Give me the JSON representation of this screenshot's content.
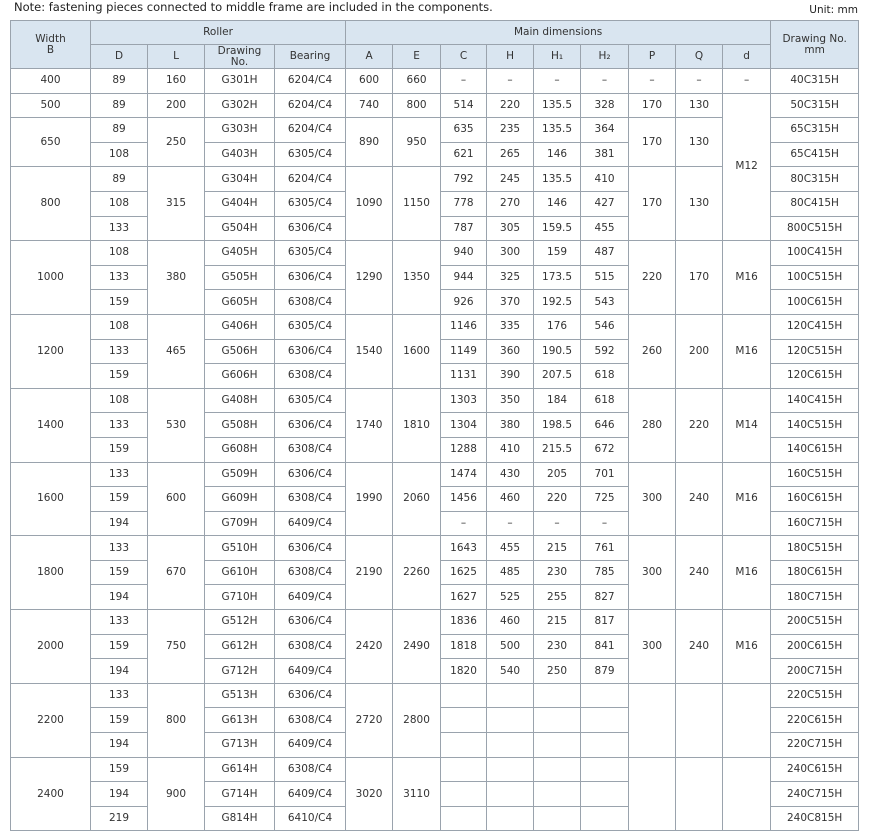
{
  "note": "Note: fastening pieces connected to middle frame are included in the components.",
  "unit": "Unit: mm",
  "header": {
    "width_b": "Width\nB",
    "roller": "Roller",
    "main_dimensions": "Main dimensions",
    "drawing_no_mm": "Drawing No.\nmm",
    "D": "D",
    "L": "L",
    "drawing_no": "Drawing\nNo.",
    "bearing": "Bearing",
    "A": "A",
    "E": "E",
    "C": "C",
    "H": "H",
    "H1": "H₁",
    "H2": "H₂",
    "P": "P",
    "Q": "Q",
    "d": "d"
  },
  "sections": [
    {
      "d": "–",
      "groups": [
        {
          "width": 400,
          "L": 160,
          "A": 600,
          "E": 660,
          "P": "–",
          "Q": "–",
          "rows": [
            {
              "D": 89,
              "drawing_no": "G301H",
              "bearing": "6204/C4",
              "C": "–",
              "H": "–",
              "H1": "–",
              "H2": "–",
              "drawing_no_mm": "40C315H"
            }
          ]
        }
      ]
    },
    {
      "d": "M12",
      "groups": [
        {
          "width": 500,
          "L": 200,
          "A": 740,
          "E": 800,
          "P": 170,
          "Q": 130,
          "rows": [
            {
              "D": 89,
              "drawing_no": "G302H",
              "bearing": "6204/C4",
              "C": 514,
              "H": 220,
              "H1": 135.5,
              "H2": 328,
              "drawing_no_mm": "50C315H"
            }
          ]
        },
        {
          "width": 650,
          "L": 250,
          "A": 890,
          "E": 950,
          "P": 170,
          "Q": 130,
          "rows": [
            {
              "D": 89,
              "drawing_no": "G303H",
              "bearing": "6204/C4",
              "C": 635,
              "H": 235,
              "H1": 135.5,
              "H2": 364,
              "drawing_no_mm": "65C315H"
            },
            {
              "D": 108,
              "drawing_no": "G403H",
              "bearing": "6305/C4",
              "C": 621,
              "H": 265,
              "H1": 146,
              "H2": 381,
              "drawing_no_mm": "65C415H"
            }
          ]
        },
        {
          "width": 800,
          "L": 315,
          "A": 1090,
          "E": 1150,
          "P": 170,
          "Q": 130,
          "rows": [
            {
              "D": 89,
              "drawing_no": "G304H",
              "bearing": "6204/C4",
              "C": 792,
              "H": 245,
              "H1": 135.5,
              "H2": 410,
              "drawing_no_mm": "80C315H"
            },
            {
              "D": 108,
              "drawing_no": "G404H",
              "bearing": "6305/C4",
              "C": 778,
              "H": 270,
              "H1": 146,
              "H2": 427,
              "drawing_no_mm": "80C415H"
            },
            {
              "D": 133,
              "drawing_no": "G504H",
              "bearing": "6306/C4",
              "C": 787,
              "H": 305,
              "H1": 159.5,
              "H2": 455,
              "drawing_no_mm": "800C515H"
            }
          ]
        }
      ]
    },
    {
      "d": "M16",
      "groups": [
        {
          "width": 1000,
          "L": 380,
          "A": 1290,
          "E": 1350,
          "P": 220,
          "Q": 170,
          "rows": [
            {
              "D": 108,
              "drawing_no": "G405H",
              "bearing": "6305/C4",
              "C": 940,
              "H": 300,
              "H1": 159,
              "H2": 487,
              "drawing_no_mm": "100C415H"
            },
            {
              "D": 133,
              "drawing_no": "G505H",
              "bearing": "6306/C4",
              "C": 944,
              "H": 325,
              "H1": 173.5,
              "H2": 515,
              "drawing_no_mm": "100C515H"
            },
            {
              "D": 159,
              "drawing_no": "G605H",
              "bearing": "6308/C4",
              "C": 926,
              "H": 370,
              "H1": 192.5,
              "H2": 543,
              "drawing_no_mm": "100C615H"
            }
          ]
        }
      ]
    },
    {
      "d": "M16",
      "groups": [
        {
          "width": 1200,
          "L": 465,
          "A": 1540,
          "E": 1600,
          "P": 260,
          "Q": 200,
          "rows": [
            {
              "D": 108,
              "drawing_no": "G406H",
              "bearing": "6305/C4",
              "C": 1146,
              "H": 335,
              "H1": 176,
              "H2": 546,
              "drawing_no_mm": "120C415H"
            },
            {
              "D": 133,
              "drawing_no": "G506H",
              "bearing": "6306/C4",
              "C": 1149,
              "H": 360,
              "H1": 190.5,
              "H2": 592,
              "drawing_no_mm": "120C515H"
            },
            {
              "D": 159,
              "drawing_no": "G606H",
              "bearing": "6308/C4",
              "C": 1131,
              "H": 390,
              "H1": 207.5,
              "H2": 618,
              "drawing_no_mm": "120C615H"
            }
          ]
        }
      ]
    },
    {
      "d": "M14",
      "groups": [
        {
          "width": 1400,
          "L": 530,
          "A": 1740,
          "E": 1810,
          "P": 280,
          "Q": 220,
          "rows": [
            {
              "D": 108,
              "drawing_no": "G408H",
              "bearing": "6305/C4",
              "C": 1303,
              "H": 350,
              "H1": 184,
              "H2": 618,
              "drawing_no_mm": "140C415H"
            },
            {
              "D": 133,
              "drawing_no": "G508H",
              "bearing": "6306/C4",
              "C": 1304,
              "H": 380,
              "H1": 198.5,
              "H2": 646,
              "drawing_no_mm": "140C515H"
            },
            {
              "D": 159,
              "drawing_no": "G608H",
              "bearing": "6308/C4",
              "C": 1288,
              "H": 410,
              "H1": 215.5,
              "H2": 672,
              "drawing_no_mm": "140C615H"
            }
          ]
        }
      ]
    },
    {
      "d": "M16",
      "groups": [
        {
          "width": 1600,
          "L": 600,
          "A": 1990,
          "E": 2060,
          "P": 300,
          "Q": 240,
          "rows": [
            {
              "D": 133,
              "drawing_no": "G509H",
              "bearing": "6306/C4",
              "C": 1474,
              "H": 430,
              "H1": 205,
              "H2": 701,
              "drawing_no_mm": "160C515H"
            },
            {
              "D": 159,
              "drawing_no": "G609H",
              "bearing": "6308/C4",
              "C": 1456,
              "H": 460,
              "H1": 220,
              "H2": 725,
              "drawing_no_mm": "160C615H"
            },
            {
              "D": 194,
              "drawing_no": "G709H",
              "bearing": "6409/C4",
              "C": "–",
              "H": "–",
              "H1": "–",
              "H2": "–",
              "drawing_no_mm": "160C715H"
            }
          ]
        }
      ]
    },
    {
      "d": "M16",
      "groups": [
        {
          "width": 1800,
          "L": 670,
          "A": 2190,
          "E": 2260,
          "P": 300,
          "Q": 240,
          "rows": [
            {
              "D": 133,
              "drawing_no": "G510H",
              "bearing": "6306/C4",
              "C": 1643,
              "H": 455,
              "H1": 215,
              "H2": 761,
              "drawing_no_mm": "180C515H"
            },
            {
              "D": 159,
              "drawing_no": "G610H",
              "bearing": "6308/C4",
              "C": 1625,
              "H": 485,
              "H1": 230,
              "H2": 785,
              "drawing_no_mm": "180C615H"
            },
            {
              "D": 194,
              "drawing_no": "G710H",
              "bearing": "6409/C4",
              "C": 1627,
              "H": 525,
              "H1": 255,
              "H2": 827,
              "drawing_no_mm": "180C715H"
            }
          ]
        }
      ]
    },
    {
      "d": "M16",
      "groups": [
        {
          "width": 2000,
          "L": 750,
          "A": 2420,
          "E": 2490,
          "P": 300,
          "Q": 240,
          "rows": [
            {
              "D": 133,
              "drawing_no": "G512H",
              "bearing": "6306/C4",
              "C": 1836,
              "H": 460,
              "H1": 215,
              "H2": 817,
              "drawing_no_mm": "200C515H"
            },
            {
              "D": 159,
              "drawing_no": "G612H",
              "bearing": "6308/C4",
              "C": 1818,
              "H": 500,
              "H1": 230,
              "H2": 841,
              "drawing_no_mm": "200C615H"
            },
            {
              "D": 194,
              "drawing_no": "G712H",
              "bearing": "6409/C4",
              "C": 1820,
              "H": 540,
              "H1": 250,
              "H2": 879,
              "drawing_no_mm": "200C715H"
            }
          ]
        }
      ]
    },
    {
      "groups": [
        {
          "width": 2200,
          "L": 800,
          "A": 2720,
          "E": 2800,
          "rows": [
            {
              "D": 133,
              "drawing_no": "G513H",
              "bearing": "6306/C4",
              "drawing_no_mm": "220C515H"
            },
            {
              "D": 159,
              "drawing_no": "G613H",
              "bearing": "6308/C4",
              "drawing_no_mm": "220C615H"
            },
            {
              "D": 194,
              "drawing_no": "G713H",
              "bearing": "6409/C4",
              "drawing_no_mm": "220C715H"
            }
          ]
        }
      ]
    },
    {
      "groups": [
        {
          "width": 2400,
          "L": 900,
          "A": 3020,
          "E": 3110,
          "rows": [
            {
              "D": 159,
              "drawing_no": "G614H",
              "bearing": "6308/C4",
              "drawing_no_mm": "240C615H"
            },
            {
              "D": 194,
              "drawing_no": "G714H",
              "bearing": "6409/C4",
              "drawing_no_mm": "240C715H"
            },
            {
              "D": 219,
              "drawing_no": "G814H",
              "bearing": "6410/C4",
              "drawing_no_mm": "240C815H"
            }
          ]
        }
      ]
    }
  ]
}
